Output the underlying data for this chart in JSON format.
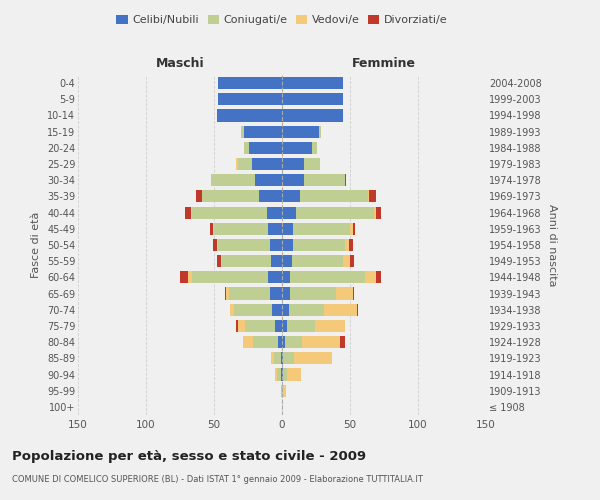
{
  "age_groups": [
    "100+",
    "95-99",
    "90-94",
    "85-89",
    "80-84",
    "75-79",
    "70-74",
    "65-69",
    "60-64",
    "55-59",
    "50-54",
    "45-49",
    "40-44",
    "35-39",
    "30-34",
    "25-29",
    "20-24",
    "15-19",
    "10-14",
    "5-9",
    "0-4"
  ],
  "birth_years": [
    "≤ 1908",
    "1909-1913",
    "1914-1918",
    "1919-1923",
    "1924-1928",
    "1929-1933",
    "1934-1938",
    "1939-1943",
    "1944-1948",
    "1949-1953",
    "1954-1958",
    "1959-1963",
    "1964-1968",
    "1969-1973",
    "1974-1978",
    "1979-1983",
    "1984-1988",
    "1989-1993",
    "1994-1998",
    "1999-2003",
    "2004-2008"
  ],
  "maschi": {
    "celibi": [
      0,
      0,
      1,
      1,
      3,
      5,
      7,
      9,
      10,
      8,
      9,
      10,
      11,
      17,
      20,
      22,
      24,
      28,
      48,
      47,
      47
    ],
    "coniugati": [
      0,
      1,
      3,
      5,
      18,
      22,
      28,
      30,
      56,
      36,
      38,
      40,
      55,
      42,
      32,
      10,
      4,
      2,
      0,
      0,
      0
    ],
    "vedovi": [
      0,
      0,
      1,
      2,
      8,
      5,
      3,
      2,
      3,
      1,
      1,
      1,
      1,
      0,
      0,
      2,
      0,
      0,
      0,
      0,
      0
    ],
    "divorziati": [
      0,
      0,
      0,
      0,
      0,
      2,
      0,
      1,
      6,
      3,
      3,
      2,
      4,
      4,
      0,
      0,
      0,
      0,
      0,
      0,
      0
    ]
  },
  "femmine": {
    "nubili": [
      0,
      0,
      1,
      1,
      2,
      4,
      5,
      6,
      6,
      7,
      8,
      8,
      10,
      13,
      16,
      16,
      22,
      27,
      45,
      45,
      45
    ],
    "coniugate": [
      0,
      1,
      3,
      8,
      13,
      20,
      26,
      34,
      55,
      38,
      38,
      42,
      58,
      50,
      30,
      12,
      4,
      2,
      0,
      0,
      0
    ],
    "vedove": [
      0,
      2,
      10,
      28,
      28,
      22,
      24,
      12,
      8,
      5,
      3,
      2,
      1,
      1,
      0,
      0,
      0,
      0,
      0,
      0,
      0
    ],
    "divorziate": [
      0,
      0,
      0,
      0,
      3,
      0,
      1,
      1,
      4,
      3,
      3,
      2,
      4,
      5,
      1,
      0,
      0,
      0,
      0,
      0,
      0
    ]
  },
  "colors": {
    "celibi": "#4472C4",
    "coniugati": "#BFCE93",
    "vedovi": "#F5C97A",
    "divorziati": "#C0392B"
  },
  "title": "Popolazione per età, sesso e stato civile - 2009",
  "subtitle": "COMUNE DI COMELICO SUPERIORE (BL) - Dati ISTAT 1° gennaio 2009 - Elaborazione TUTTITALIA.IT",
  "xlabel_left": "Maschi",
  "xlabel_right": "Femmine",
  "ylabel_left": "Fasce di età",
  "ylabel_right": "Anni di nascita",
  "xlim": 150,
  "legend_labels": [
    "Celibi/Nubili",
    "Coniugati/e",
    "Vedovi/e",
    "Divorziati/e"
  ],
  "bg_color": "#f0f0f0",
  "grid_color": "#cccccc"
}
